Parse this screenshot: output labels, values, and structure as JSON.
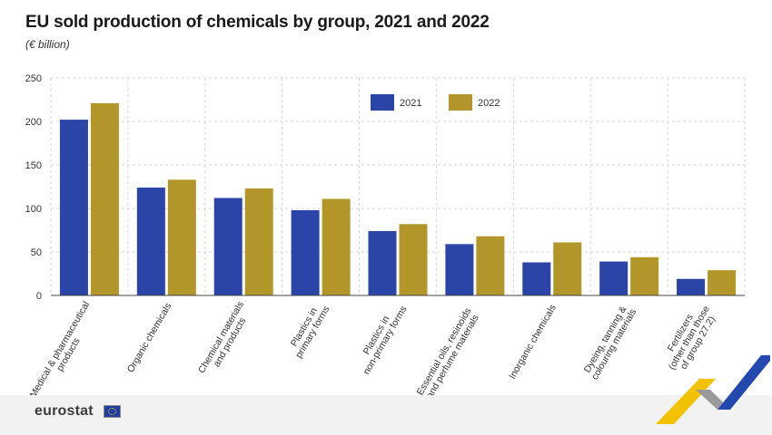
{
  "header": {
    "title": "EU sold production of chemicals by group, 2021 and 2022",
    "subtitle": "(€ billion)"
  },
  "footer": {
    "logo": "eurostat"
  },
  "colors": {
    "series_2021": "#2a44a8",
    "series_2022": "#b39629",
    "grid": "#d6d6d6",
    "axis": "#444444"
  },
  "chart_data": {
    "type": "bar",
    "title": "EU sold production of chemicals by group, 2021 and 2022",
    "subtitle": "(€ billion)",
    "xlabel": "",
    "ylabel": "",
    "ylim": [
      0,
      250
    ],
    "yticks": [
      0,
      50,
      100,
      150,
      200,
      250
    ],
    "grid": true,
    "legend_position": "top-center",
    "categories": [
      [
        "Medical & pharmaceutical",
        "products"
      ],
      [
        "Organic chemicals"
      ],
      [
        "Chemical materials",
        "and products"
      ],
      [
        "Plastics in",
        "primary forms"
      ],
      [
        "Plastics in",
        "non-primary forms"
      ],
      [
        "Essential oils, resinoids",
        "and perfume materials"
      ],
      [
        "Inorganic chemicals"
      ],
      [
        "Dyeing, tanning &",
        "colouring materials"
      ],
      [
        "Fertilizers",
        "(other than those",
        "of group 27.2)"
      ]
    ],
    "series": [
      {
        "name": "2021",
        "values": [
          202,
          124,
          112,
          98,
          74,
          59,
          38,
          39,
          19
        ]
      },
      {
        "name": "2022",
        "values": [
          221,
          133,
          123,
          111,
          82,
          68,
          61,
          44,
          29
        ]
      }
    ]
  }
}
